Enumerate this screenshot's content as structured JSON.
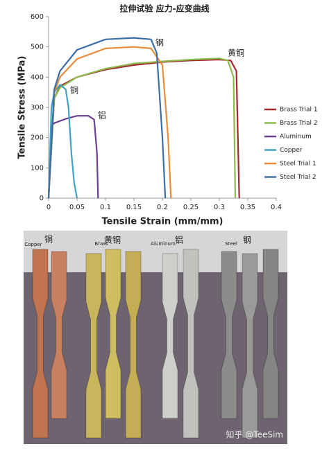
{
  "chart_data": {
    "type": "line",
    "title": "拉伸试验 应力-应变曲线",
    "x_label": "Tensile Strain (mm/mm)",
    "y_label": "Tensile Stress (MPa)",
    "xlim": [
      0,
      0.4
    ],
    "ylim": [
      0,
      600
    ],
    "xticks": [
      0,
      0.05,
      0.1,
      0.15,
      0.2,
      0.25,
      0.3,
      0.35,
      0.4
    ],
    "yticks": [
      0,
      100,
      200,
      300,
      400,
      500,
      600
    ],
    "legend": "right",
    "annotations": [
      "钢",
      "黄铜",
      "铜",
      "铝"
    ],
    "series": [
      {
        "name": "Brass Trial 1",
        "color": "#a3282f",
        "x": [
          0,
          0.01,
          0.02,
          0.05,
          0.1,
          0.15,
          0.2,
          0.25,
          0.3,
          0.32,
          0.33,
          0.335
        ],
        "values": [
          0,
          330,
          370,
          400,
          425,
          440,
          450,
          455,
          458,
          455,
          420,
          0
        ]
      },
      {
        "name": "Brass Trial 2",
        "color": "#8dba4a",
        "x": [
          0,
          0.01,
          0.02,
          0.05,
          0.1,
          0.15,
          0.2,
          0.25,
          0.3,
          0.315,
          0.325,
          0.328
        ],
        "values": [
          0,
          330,
          365,
          400,
          428,
          445,
          452,
          458,
          462,
          455,
          400,
          0
        ]
      },
      {
        "name": "Aluminum",
        "color": "#6b3f8f",
        "x": [
          0,
          0.005,
          0.01,
          0.03,
          0.05,
          0.07,
          0.08,
          0.085,
          0.087
        ],
        "values": [
          0,
          240,
          248,
          262,
          272,
          272,
          260,
          150,
          0
        ]
      },
      {
        "name": "Copper",
        "color": "#3fa3c0",
        "x": [
          0,
          0.005,
          0.01,
          0.02,
          0.03,
          0.035,
          0.04,
          0.045,
          0.05
        ],
        "values": [
          0,
          300,
          350,
          375,
          360,
          300,
          150,
          50,
          0
        ]
      },
      {
        "name": "Steel Trial 1",
        "color": "#e98b3a",
        "x": [
          0,
          0.01,
          0.02,
          0.05,
          0.1,
          0.15,
          0.18,
          0.2,
          0.21,
          0.215
        ],
        "values": [
          0,
          350,
          400,
          460,
          495,
          500,
          495,
          440,
          200,
          0
        ]
      },
      {
        "name": "Steel Trial 2",
        "color": "#3b6ea8",
        "x": [
          0,
          0.01,
          0.02,
          0.05,
          0.1,
          0.15,
          0.18,
          0.19,
          0.2,
          0.205
        ],
        "values": [
          0,
          360,
          420,
          490,
          525,
          530,
          525,
          480,
          200,
          0
        ]
      }
    ]
  },
  "photo": {
    "labels": [
      "铜",
      "Copper",
      "黄铜",
      "Brass",
      "铝",
      "Aluminum",
      "钢",
      "Steel"
    ],
    "watermark": "知乎 @TeeSim"
  }
}
